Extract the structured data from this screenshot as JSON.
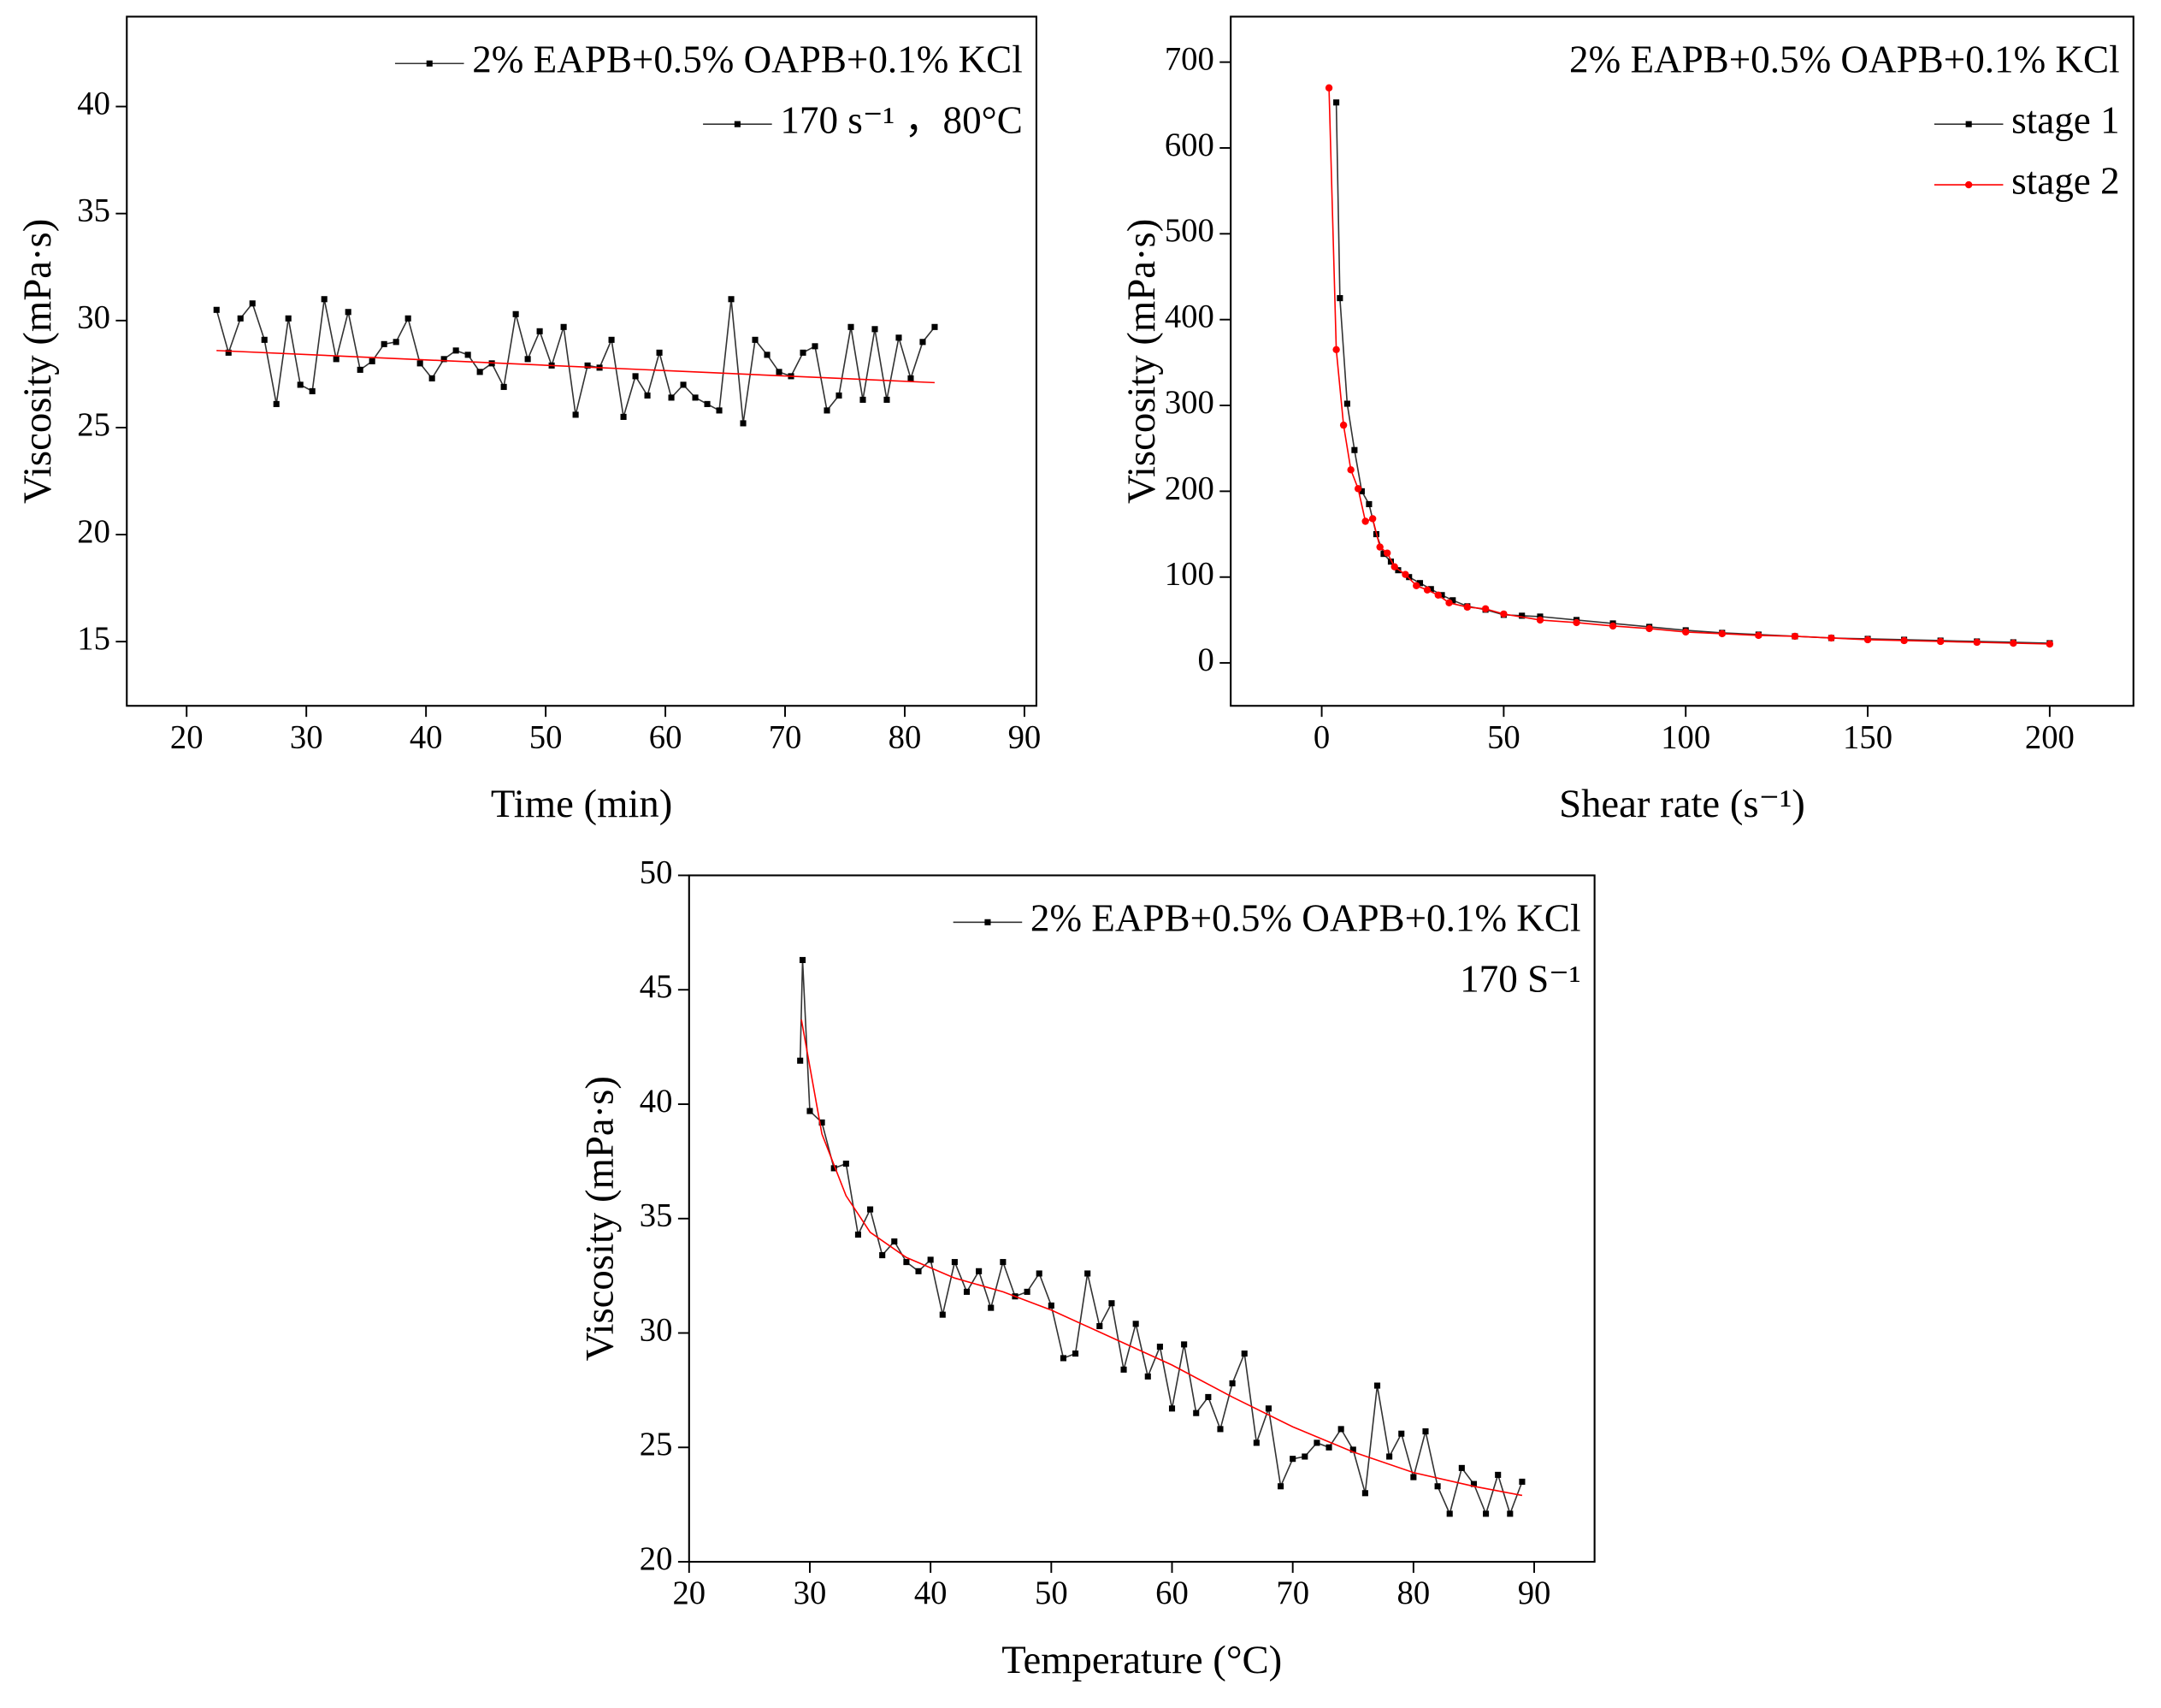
{
  "chart_data": [
    {
      "type": "line",
      "xlabel": "Time (min)",
      "ylabel": "Viscosity (mPa·s)",
      "xlim": [
        15,
        91
      ],
      "ylim": [
        12,
        44.2
      ],
      "xticks": [
        20,
        30,
        40,
        50,
        60,
        70,
        80,
        90
      ],
      "yticks": [
        15,
        20,
        25,
        30,
        35,
        40
      ],
      "annotations": [
        "170 s⁻¹ ，80°C"
      ],
      "annotation_marker": true,
      "annotation_position": "below_legend",
      "series": [
        {
          "name": "2% EAPB+0.5% OAPB+0.1% KCl",
          "color": "#000000",
          "marker": "square",
          "x": [
            22.5,
            23.5,
            24.5,
            25.5,
            26.5,
            27.5,
            28.5,
            29.5,
            30.5,
            31.5,
            32.5,
            33.5,
            34.5,
            35.5,
            36.5,
            37.5,
            38.5,
            39.5,
            40.5,
            41.5,
            42.5,
            43.5,
            44.5,
            45.5,
            46.5,
            47.5,
            48.5,
            49.5,
            50.5,
            51.5,
            52.5,
            53.5,
            54.5,
            55.5,
            56.5,
            57.5,
            58.5,
            59.5,
            60.5,
            61.5,
            62.5,
            63.5,
            64.5,
            65.5,
            66.5,
            67.5,
            68.5,
            69.5,
            70.5,
            71.5,
            72.5,
            73.5,
            74.5,
            75.5,
            76.5,
            77.5,
            78.5,
            79.5,
            80.5,
            81.5,
            82.5
          ],
          "values": [
            30.5,
            28.5,
            30.1,
            30.8,
            29.1,
            26.1,
            30.1,
            27.0,
            26.7,
            31.0,
            28.2,
            30.4,
            27.7,
            28.1,
            28.9,
            29.0,
            30.1,
            28.0,
            27.3,
            28.2,
            28.6,
            28.4,
            27.6,
            28.0,
            26.9,
            30.3,
            28.2,
            29.5,
            27.9,
            29.7,
            25.6,
            27.9,
            27.8,
            29.1,
            25.5,
            27.4,
            26.5,
            28.5,
            26.4,
            27.0,
            26.4,
            26.1,
            25.8,
            31.0,
            25.2,
            29.1,
            28.4,
            27.6,
            27.4,
            28.5,
            28.8,
            25.8,
            26.5,
            29.7,
            26.3,
            29.6,
            26.3,
            29.2,
            27.3,
            29.0,
            29.7
          ]
        },
        {
          "color": "#ff0000",
          "marker": "none",
          "x": [
            22.5,
            82.5
          ],
          "values": [
            28.6,
            27.1
          ]
        }
      ]
    },
    {
      "type": "line",
      "xlabel": "Shear rate (s⁻¹)",
      "ylabel": "Viscosity (mPa·s)",
      "xlim": [
        -25,
        223
      ],
      "ylim": [
        -50,
        753
      ],
      "xticks": [
        0,
        50,
        100,
        150,
        200
      ],
      "yticks": [
        0,
        100,
        200,
        300,
        400,
        500,
        600,
        700
      ],
      "annotations": [
        "2% EAPB+0.5% OAPB+0.1% KCl"
      ],
      "annotation_marker": false,
      "annotation_position": "above_legend",
      "series": [
        {
          "name": "stage 1",
          "color": "#000000",
          "marker": "square",
          "x": [
            4,
            5,
            7,
            9,
            11,
            13,
            15,
            17,
            19,
            21,
            24,
            27,
            30,
            33,
            36,
            40,
            45,
            50,
            55,
            60,
            70,
            80,
            90,
            100,
            110,
            120,
            130,
            140,
            150,
            160,
            170,
            180,
            190,
            200
          ],
          "values": [
            653,
            425,
            302,
            248,
            200,
            185,
            150,
            127,
            118,
            108,
            100,
            93,
            86,
            79,
            73,
            66,
            62,
            56,
            55,
            54,
            50,
            46,
            42,
            38,
            35,
            33,
            31,
            29,
            28,
            27,
            26,
            25,
            24,
            23
          ]
        },
        {
          "name": "stage 2",
          "color": "#ff0000",
          "marker": "circle",
          "x": [
            2,
            4,
            6,
            8,
            10,
            12,
            14,
            16,
            18,
            20,
            23,
            26,
            29,
            32,
            35,
            40,
            45,
            50,
            60,
            70,
            80,
            90,
            100,
            110,
            120,
            130,
            140,
            150,
            160,
            170,
            180,
            190,
            200
          ],
          "values": [
            670,
            365,
            277,
            225,
            203,
            165,
            168,
            135,
            128,
            112,
            103,
            90,
            85,
            79,
            70,
            65,
            63,
            57,
            50,
            47,
            43,
            40,
            36,
            34,
            32,
            31,
            29,
            27,
            26,
            25,
            24,
            23,
            22
          ]
        }
      ]
    },
    {
      "type": "line",
      "xlabel": "Temperature (°C)",
      "ylabel": "Viscosity (mPa·s)",
      "xlim": [
        20,
        95
      ],
      "ylim": [
        20,
        50
      ],
      "xticks": [
        20,
        30,
        40,
        50,
        60,
        70,
        80,
        90
      ],
      "yticks": [
        20,
        25,
        30,
        35,
        40,
        45,
        50
      ],
      "annotations": [
        "170 S⁻¹"
      ],
      "annotation_marker": false,
      "annotation_position": "below_legend",
      "series": [
        {
          "name": "2% EAPB+0.5% OAPB+0.1% KCl",
          "color": "#000000",
          "marker": "square",
          "x": [
            29.2,
            29.4,
            30,
            31,
            32,
            33,
            34,
            35,
            36,
            37,
            38,
            39,
            40,
            41,
            42,
            43,
            44,
            45,
            46,
            47,
            48,
            49,
            50,
            51,
            52,
            53,
            54,
            55,
            56,
            57,
            58,
            59,
            60,
            61,
            62,
            63,
            64,
            65,
            66,
            67,
            68,
            69,
            70,
            71,
            72,
            73,
            74,
            75,
            76,
            77,
            78,
            79,
            80,
            81,
            82,
            83,
            84,
            85,
            86,
            87,
            88,
            89
          ],
          "values": [
            41.9,
            46.3,
            39.7,
            39.2,
            37.2,
            37.4,
            34.3,
            35.4,
            33.4,
            34.0,
            33.1,
            32.7,
            33.2,
            30.8,
            33.1,
            31.8,
            32.7,
            31.1,
            33.1,
            31.6,
            31.8,
            32.6,
            31.2,
            28.9,
            29.1,
            32.6,
            30.3,
            31.3,
            28.4,
            30.4,
            28.1,
            29.4,
            26.7,
            29.5,
            26.5,
            27.2,
            25.8,
            27.8,
            29.1,
            25.2,
            26.7,
            23.3,
            24.5,
            24.6,
            25.2,
            25.0,
            25.8,
            24.9,
            23.0,
            27.7,
            24.6,
            25.6,
            23.7,
            25.7,
            23.3,
            22.1,
            24.1,
            23.4,
            22.1,
            23.8,
            22.1,
            23.5
          ]
        },
        {
          "color": "#ff0000",
          "marker": "none",
          "x": [
            29.3,
            31,
            33,
            35,
            38,
            42,
            46,
            50,
            55,
            60,
            65,
            70,
            75,
            80,
            85,
            89
          ],
          "values": [
            43.7,
            38.7,
            36.0,
            34.4,
            33.3,
            32.4,
            31.8,
            31.0,
            29.8,
            28.6,
            27.2,
            25.9,
            24.8,
            23.9,
            23.3,
            22.9
          ]
        }
      ]
    }
  ]
}
